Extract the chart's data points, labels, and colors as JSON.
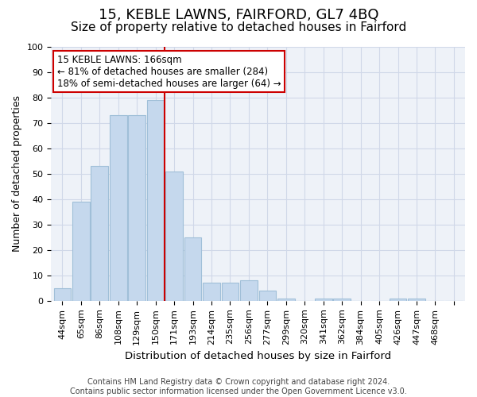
{
  "title": "15, KEBLE LAWNS, FAIRFORD, GL7 4BQ",
  "subtitle": "Size of property relative to detached houses in Fairford",
  "xlabel": "Distribution of detached houses by size in Fairford",
  "ylabel": "Number of detached properties",
  "bar_values": [
    5,
    39,
    53,
    73,
    73,
    79,
    51,
    25,
    7,
    7,
    8,
    4,
    1,
    0,
    1,
    1,
    0,
    0,
    1,
    1,
    0,
    0
  ],
  "bin_labels": [
    "44sqm",
    "65sqm",
    "86sqm",
    "108sqm",
    "129sqm",
    "150sqm",
    "171sqm",
    "193sqm",
    "214sqm",
    "235sqm",
    "256sqm",
    "277sqm",
    "299sqm",
    "320sqm",
    "341sqm",
    "362sqm",
    "384sqm",
    "405sqm",
    "426sqm",
    "447sqm",
    "468sqm",
    ""
  ],
  "bar_color": "#c5d8ed",
  "bar_edge_color": "#a0bfd8",
  "property_line_x": 5.5,
  "annotation_line1": "15 KEBLE LAWNS: 166sqm",
  "annotation_line2": "← 81% of detached houses are smaller (284)",
  "annotation_line3": "18% of semi-detached houses are larger (64) →",
  "annotation_box_color": "#ffffff",
  "annotation_box_edge_color": "#cc0000",
  "vline_color": "#cc0000",
  "ylim": [
    0,
    100
  ],
  "yticks": [
    0,
    10,
    20,
    30,
    40,
    50,
    60,
    70,
    80,
    90,
    100
  ],
  "grid_color": "#d0d8e8",
  "bg_color": "#eef2f8",
  "footer_line1": "Contains HM Land Registry data © Crown copyright and database right 2024.",
  "footer_line2": "Contains public sector information licensed under the Open Government Licence v3.0.",
  "title_fontsize": 13,
  "subtitle_fontsize": 11,
  "xlabel_fontsize": 9.5,
  "ylabel_fontsize": 9,
  "tick_fontsize": 8,
  "annotation_fontsize": 8.5,
  "footer_fontsize": 7
}
